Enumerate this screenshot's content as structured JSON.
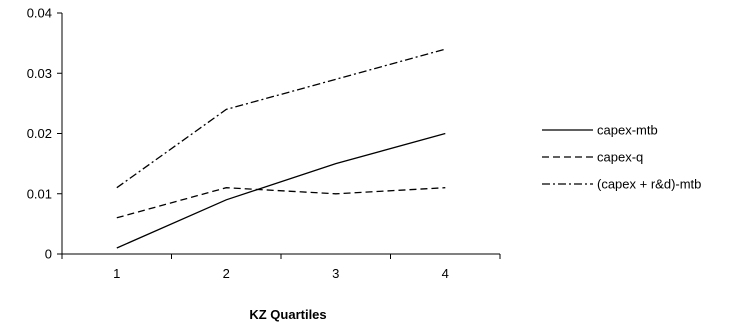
{
  "chart_data": {
    "type": "line",
    "title": "",
    "xlabel": "KZ Quartiles",
    "ylabel": "",
    "categories": [
      "1",
      "2",
      "3",
      "4"
    ],
    "ylim": [
      0,
      0.04
    ],
    "yticks": [
      "0",
      "0.01",
      "0.02",
      "0.03",
      "0.04"
    ],
    "grid": false,
    "legend_position": "right",
    "series": [
      {
        "name": "capex-mtb",
        "values": [
          0.001,
          0.009,
          0.015,
          0.02
        ],
        "dash": "solid"
      },
      {
        "name": "capex-q",
        "values": [
          0.006,
          0.011,
          0.01,
          0.011
        ],
        "dash": "dashed"
      },
      {
        "name": "(capex + r&d)-mtb",
        "values": [
          0.011,
          0.024,
          0.029,
          0.034
        ],
        "dash": "dashdot"
      }
    ]
  }
}
